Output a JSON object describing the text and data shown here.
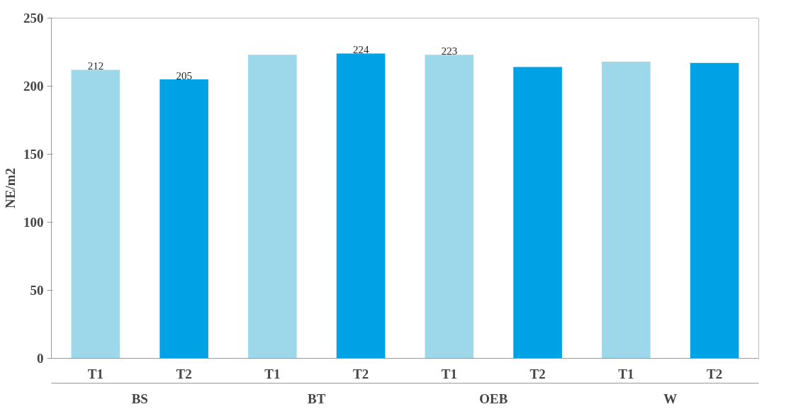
{
  "chart_data": {
    "type": "bar",
    "ylabel": "NE/m2",
    "categories": [
      "T1",
      "T2",
      "T1",
      "T2",
      "T1",
      "T2",
      "T1",
      "T2"
    ],
    "values": [
      212,
      205,
      223,
      224,
      223,
      214,
      218,
      217
    ],
    "colors": [
      "#9dd8ea",
      "#00a2e6",
      "#9dd8ea",
      "#00a2e6",
      "#9dd8ea",
      "#00a2e6",
      "#9dd8ea",
      "#00a2e6"
    ],
    "value_labels": [
      "212",
      "205",
      null,
      "224",
      "223",
      null,
      null,
      null
    ],
    "annotations": [
      "BS",
      "BT",
      "OEB",
      "W"
    ],
    "ylim": [
      0,
      250
    ],
    "yticks": [
      0,
      50,
      100,
      150,
      200,
      250
    ],
    "grid": false
  }
}
